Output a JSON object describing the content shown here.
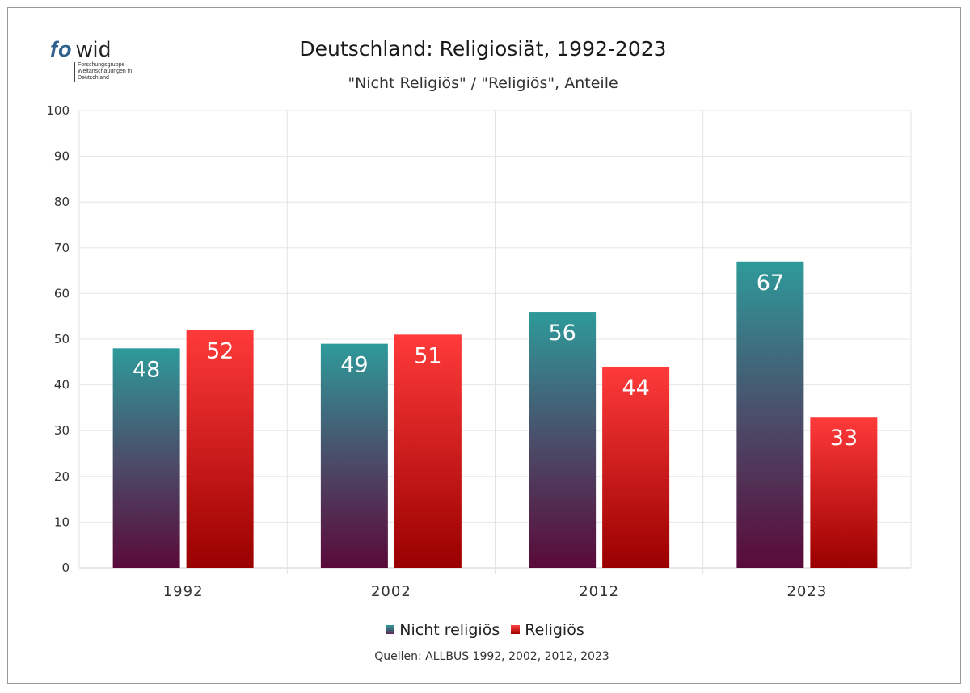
{
  "logo": {
    "word_fo": "fo",
    "word_wid": "wid",
    "tagline": "Forschungsgruppe Weltanschauungen in Deutschland"
  },
  "chart_data": {
    "type": "bar",
    "title": "Deutschland: Religiosiät, 1992-2023",
    "subtitle": "\"Nicht Religiös\" / \"Religiös\", Anteile",
    "categories": [
      "1992",
      "2002",
      "2012",
      "2023"
    ],
    "series": [
      {
        "name": "Nicht religiös",
        "values": [
          48,
          49,
          56,
          67
        ],
        "color_top": "#2e9a9a",
        "color_bottom": "#5a0a3a"
      },
      {
        "name": "Religiös",
        "values": [
          52,
          51,
          44,
          33
        ],
        "color_top": "#ff3a3a",
        "color_bottom": "#9a0000"
      }
    ],
    "ylim": [
      0,
      100
    ],
    "yticks": [
      0,
      10,
      20,
      30,
      40,
      50,
      60,
      70,
      80,
      90,
      100
    ],
    "grid": true,
    "legend_position": "bottom",
    "source": "Quellen: ALLBUS 1992, 2002, 2012, 2023"
  }
}
